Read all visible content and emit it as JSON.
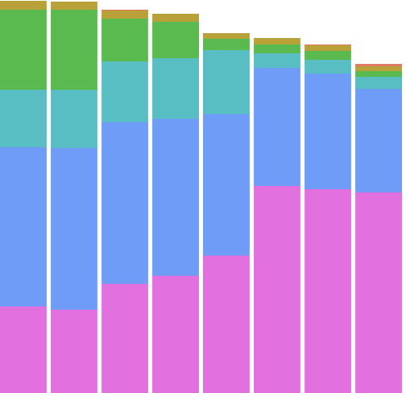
{
  "chart_data": {
    "type": "bar",
    "stacked": true,
    "categories": [
      "",
      "",
      "",
      "",
      "",
      "",
      "",
      ""
    ],
    "ylim": [
      0,
      486
    ],
    "grid": false,
    "legend": "none",
    "series": [
      {
        "color": "#e270df",
        "values": [
          107,
          103,
          135,
          145,
          170,
          256,
          252,
          248
        ]
      },
      {
        "color": "#6e9cf6",
        "values": [
          197,
          200,
          200,
          194,
          175,
          146,
          143,
          128
        ]
      },
      {
        "color": "#58bec4",
        "values": [
          71,
          72,
          75,
          75,
          79,
          18,
          17,
          15
        ]
      },
      {
        "color": "#5bba4f",
        "values": [
          99,
          99,
          53,
          45,
          14,
          11,
          11,
          7
        ]
      },
      {
        "color": "#b9a13a",
        "values": [
          11,
          10,
          10,
          10,
          7,
          8,
          7,
          6
        ]
      },
      {
        "color": "#e07a60",
        "values": [
          0,
          0,
          1,
          0,
          0,
          0,
          1,
          3
        ]
      }
    ]
  }
}
